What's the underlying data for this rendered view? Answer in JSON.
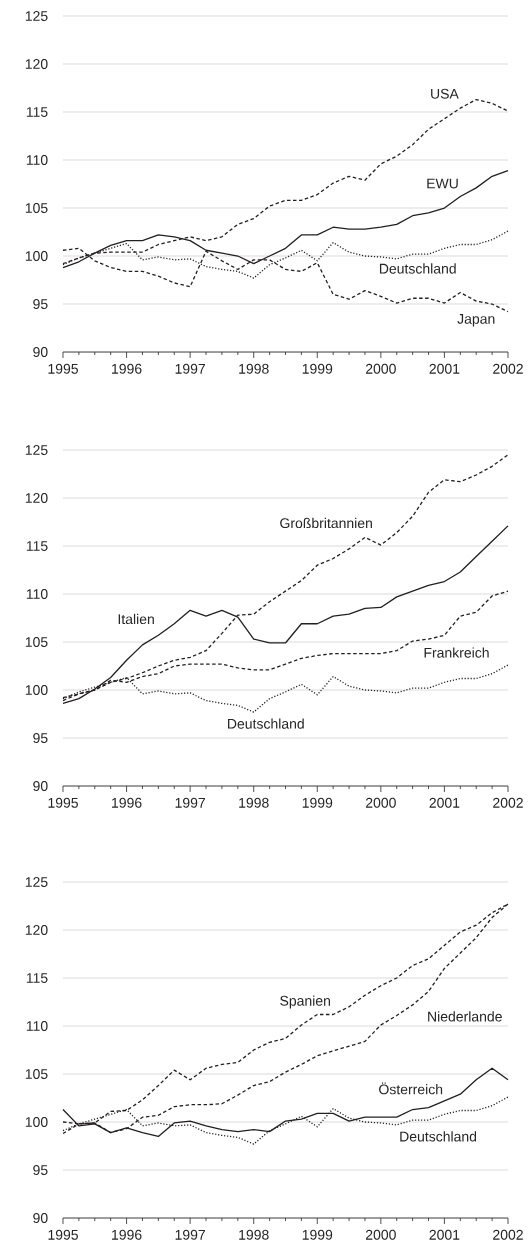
{
  "chart_data": [
    {
      "type": "line",
      "x": [
        1995,
        1995.25,
        1995.5,
        1995.75,
        1996,
        1996.25,
        1996.5,
        1996.75,
        1997,
        1997.25,
        1997.5,
        1997.75,
        1998,
        1998.25,
        1998.5,
        1998.75,
        1999,
        1999.25,
        1999.5,
        1999.75,
        2000,
        2000.25,
        2000.5,
        2000.75,
        2001,
        2001.25,
        2001.5,
        2001.75,
        2002
      ],
      "xlim": [
        1995,
        2002
      ],
      "xticks": [
        1995,
        1996,
        1997,
        1998,
        1999,
        2000,
        2001,
        2002
      ],
      "ylim": [
        90,
        125
      ],
      "yticks": [
        90,
        95,
        100,
        105,
        110,
        115,
        120,
        125
      ],
      "grid": "y",
      "series": [
        {
          "name": "USA",
          "color": "#231f20",
          "line_style": "dashed",
          "values": [
            99.2,
            99.8,
            100.3,
            100.4,
            100.4,
            100.4,
            101.2,
            101.6,
            102.0,
            101.6,
            102.0,
            103.3,
            103.9,
            105.2,
            105.8,
            105.8,
            106.4,
            107.6,
            108.3,
            107.9,
            109.6,
            110.4,
            111.6,
            113.2,
            114.3,
            115.4,
            116.3,
            115.9,
            115.1
          ]
        },
        {
          "name": "EWU",
          "color": "#231f20",
          "line_style": "solid",
          "values": [
            98.8,
            99.4,
            100.3,
            101.1,
            101.6,
            101.6,
            102.2,
            102.0,
            101.6,
            100.6,
            100.3,
            100.0,
            99.2,
            100.0,
            100.8,
            102.2,
            102.2,
            103.0,
            102.8,
            102.8,
            103.0,
            103.3,
            104.2,
            104.5,
            105.0,
            106.2,
            107.1,
            108.3,
            108.9
          ]
        },
        {
          "name": "Deutschland",
          "color": "#231f20",
          "line_style": "dotted",
          "values": [
            99.1,
            99.8,
            100.3,
            100.8,
            101.3,
            99.6,
            99.9,
            99.6,
            99.7,
            98.9,
            98.6,
            98.4,
            97.7,
            99.1,
            99.8,
            100.6,
            99.5,
            101.4,
            100.4,
            100.0,
            99.9,
            99.7,
            100.2,
            100.2,
            100.8,
            101.2,
            101.2,
            101.7,
            102.6
          ]
        },
        {
          "name": "Japan",
          "color": "#231f20",
          "line_style": "dashed",
          "values": [
            100.6,
            100.8,
            99.5,
            98.8,
            98.4,
            98.4,
            97.9,
            97.2,
            96.8,
            100.5,
            99.5,
            98.6,
            99.6,
            99.6,
            98.6,
            98.4,
            99.3,
            96.0,
            95.5,
            96.4,
            95.8,
            95.1,
            95.6,
            95.6,
            95.1,
            96.2,
            95.3,
            95.0,
            94.2
          ]
        }
      ]
    },
    {
      "type": "line",
      "x": [
        1995,
        1995.25,
        1995.5,
        1995.75,
        1996,
        1996.25,
        1996.5,
        1996.75,
        1997,
        1997.25,
        1997.5,
        1997.75,
        1998,
        1998.25,
        1998.5,
        1998.75,
        1999,
        1999.25,
        1999.5,
        1999.75,
        2000,
        2000.25,
        2000.5,
        2000.75,
        2001,
        2001.25,
        2001.5,
        2001.75,
        2002
      ],
      "xlim": [
        1995,
        2002
      ],
      "xticks": [
        1995,
        1996,
        1997,
        1998,
        1999,
        2000,
        2001,
        2002
      ],
      "ylim": [
        90,
        125
      ],
      "yticks": [
        90,
        95,
        100,
        105,
        110,
        115,
        120,
        125
      ],
      "grid": "y",
      "series": [
        {
          "name": "Großbritannien",
          "color": "#231f20",
          "line_style": "dashed",
          "values": [
            98.9,
            99.6,
            100.0,
            100.8,
            101.2,
            101.8,
            102.5,
            103.1,
            103.4,
            104.1,
            105.9,
            107.8,
            107.9,
            109.2,
            110.3,
            111.4,
            113.0,
            113.7,
            114.7,
            115.9,
            115.1,
            116.4,
            118.1,
            120.6,
            121.9,
            121.7,
            122.4,
            123.3,
            124.5
          ]
        },
        {
          "name": "Italien",
          "color": "#231f20",
          "line_style": "solid",
          "values": [
            98.6,
            99.1,
            100.1,
            101.3,
            103.1,
            104.7,
            105.7,
            106.9,
            108.3,
            107.7,
            108.3,
            107.6,
            105.3,
            104.9,
            104.9,
            106.9,
            106.9,
            107.7,
            107.9,
            108.5,
            108.6,
            109.7,
            110.3,
            110.9,
            111.3,
            112.3,
            113.9,
            115.5,
            117.1
          ]
        },
        {
          "name": "Frankreich",
          "color": "#231f20",
          "line_style": "dashed",
          "values": [
            99.2,
            99.6,
            100.0,
            101.0,
            100.8,
            101.4,
            101.7,
            102.5,
            102.7,
            102.7,
            102.7,
            102.3,
            102.1,
            102.1,
            102.7,
            103.3,
            103.6,
            103.8,
            103.8,
            103.8,
            103.8,
            104.1,
            105.1,
            105.3,
            105.7,
            107.7,
            108.1,
            109.8,
            110.3
          ]
        },
        {
          "name": "Deutschland",
          "color": "#231f20",
          "line_style": "dotted",
          "values": [
            99.1,
            99.8,
            100.3,
            100.8,
            101.3,
            99.6,
            99.9,
            99.6,
            99.7,
            98.9,
            98.6,
            98.4,
            97.7,
            99.1,
            99.8,
            100.6,
            99.5,
            101.4,
            100.4,
            100.0,
            99.9,
            99.7,
            100.2,
            100.2,
            100.8,
            101.2,
            101.2,
            101.7,
            102.6
          ]
        }
      ]
    },
    {
      "type": "line",
      "x": [
        1995,
        1995.25,
        1995.5,
        1995.75,
        1996,
        1996.25,
        1996.5,
        1996.75,
        1997,
        1997.25,
        1997.5,
        1997.75,
        1998,
        1998.25,
        1998.5,
        1998.75,
        1999,
        1999.25,
        1999.5,
        1999.75,
        2000,
        2000.25,
        2000.5,
        2000.75,
        2001,
        2001.25,
        2001.5,
        2001.75,
        2002
      ],
      "xlim": [
        1995,
        2002
      ],
      "xticks": [
        1995,
        1996,
        1997,
        1998,
        1999,
        2000,
        2001,
        2002
      ],
      "ylim": [
        90,
        125
      ],
      "yticks": [
        90,
        95,
        100,
        105,
        110,
        115,
        120,
        125
      ],
      "grid": "y",
      "series": [
        {
          "name": "Spanien",
          "color": "#231f20",
          "line_style": "dashed",
          "values": [
            98.8,
            99.8,
            99.9,
            101.1,
            101.2,
            102.3,
            103.8,
            105.4,
            104.4,
            105.6,
            106.0,
            106.2,
            107.5,
            108.3,
            108.7,
            110.1,
            111.2,
            111.2,
            112.0,
            113.2,
            114.2,
            115.0,
            116.3,
            117.0,
            118.4,
            119.8,
            120.5,
            121.8,
            122.7
          ]
        },
        {
          "name": "Niederlande",
          "color": "#231f20",
          "line_style": "dashed",
          "values": [
            100.0,
            99.8,
            99.9,
            98.9,
            99.3,
            100.5,
            100.7,
            101.6,
            101.8,
            101.8,
            101.9,
            102.8,
            103.8,
            104.2,
            105.2,
            106.0,
            106.9,
            107.4,
            107.9,
            108.4,
            110.1,
            111.1,
            112.2,
            113.6,
            116.0,
            117.6,
            119.2,
            121.3,
            122.7
          ]
        },
        {
          "name": "Österreich",
          "color": "#231f20",
          "line_style": "solid",
          "values": [
            101.3,
            99.6,
            99.8,
            98.9,
            99.4,
            98.9,
            98.5,
            99.9,
            100.1,
            99.6,
            99.2,
            99.0,
            99.2,
            99.0,
            100.1,
            100.3,
            100.9,
            100.9,
            100.1,
            100.5,
            100.5,
            100.5,
            101.3,
            101.5,
            102.2,
            102.9,
            104.4,
            105.6,
            104.4
          ]
        },
        {
          "name": "Deutschland",
          "color": "#231f20",
          "line_style": "dotted",
          "values": [
            99.1,
            99.8,
            100.3,
            100.8,
            101.3,
            99.6,
            99.9,
            99.6,
            99.7,
            98.9,
            98.6,
            98.4,
            97.7,
            99.1,
            99.8,
            100.6,
            99.5,
            101.4,
            100.4,
            100.0,
            99.9,
            99.7,
            100.2,
            100.2,
            100.8,
            101.2,
            101.2,
            101.7,
            102.6
          ]
        }
      ]
    }
  ]
}
